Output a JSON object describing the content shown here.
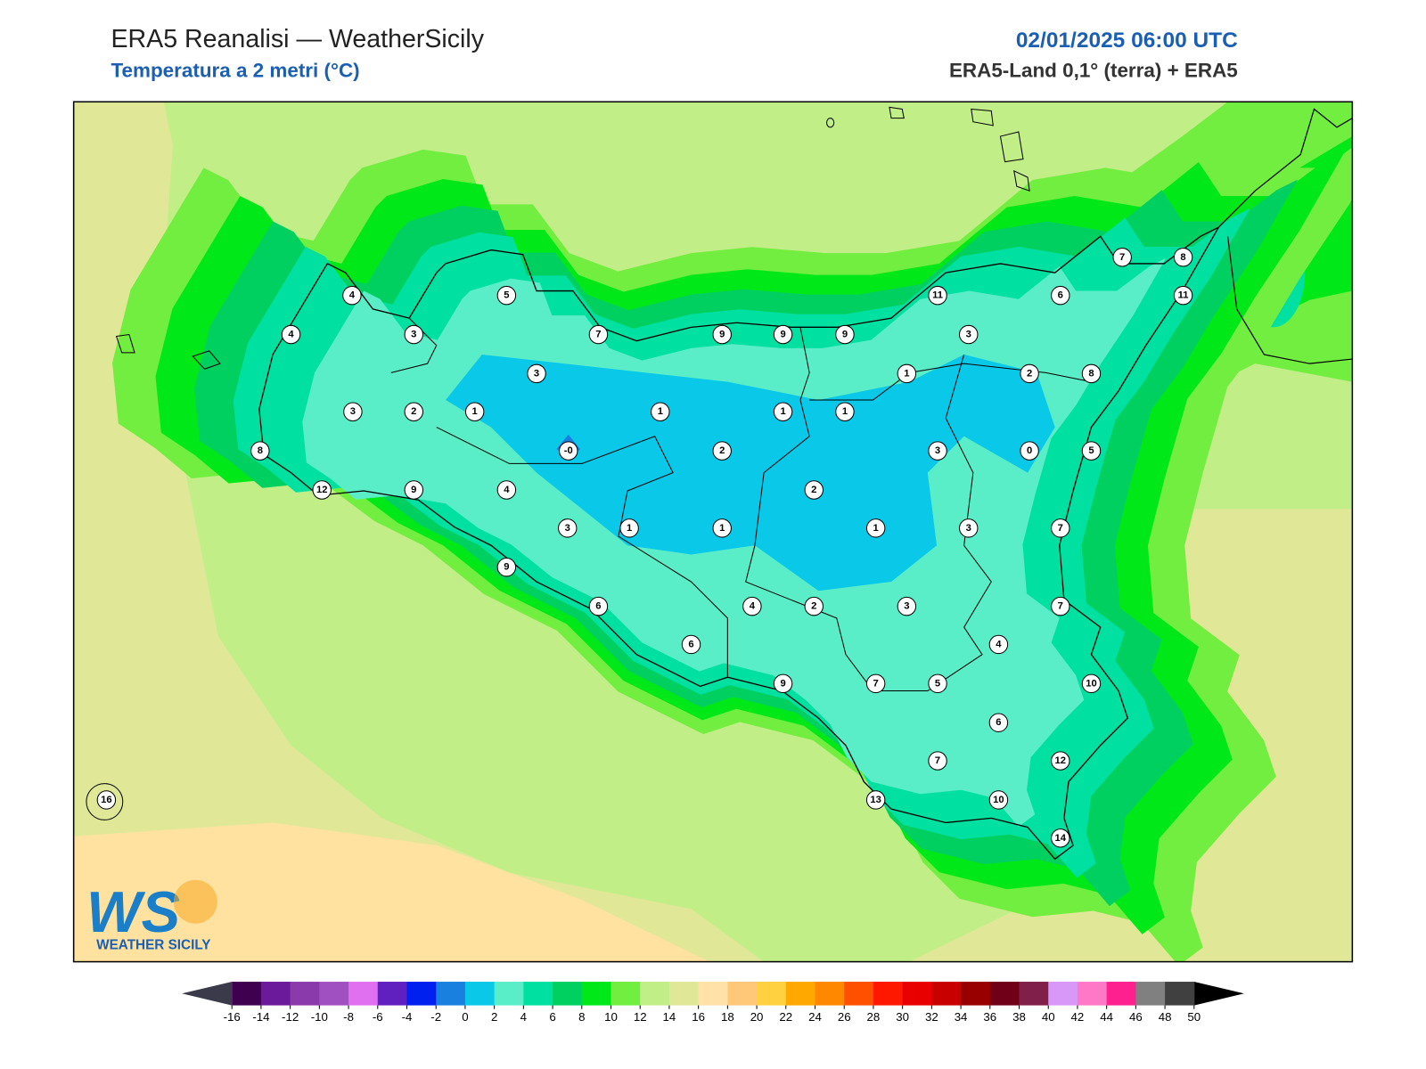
{
  "header": {
    "title": "ERA5 Reanalisi — WeatherSicily",
    "subtitle": "Temperatura a 2 metri (°C)",
    "datetime": "02/01/2025 06:00 UTC",
    "source": "ERA5-Land 0,1° (terra) + ERA5"
  },
  "map": {
    "station_labels": [
      "4",
      "5",
      "4",
      "3",
      "7",
      "9",
      "9",
      "9",
      "11",
      "6",
      "7",
      "8",
      "11",
      "3",
      "3",
      "1",
      "2",
      "8",
      "3",
      "2",
      "1",
      "1",
      "1",
      "1",
      "8",
      "-0",
      "2",
      "3",
      "0",
      "5",
      "12",
      "9",
      "4",
      "2",
      "3",
      "1",
      "1",
      "1",
      "3",
      "7",
      "9",
      "6",
      "4",
      "2",
      "3",
      "7",
      "4",
      "6",
      "9",
      "7",
      "5",
      "10",
      "6",
      "7",
      "12",
      "13",
      "10",
      "14",
      "16"
    ]
  },
  "logo": {
    "mark": "WS",
    "text": "WEATHER SICILY"
  },
  "colorbar": {
    "ticks": [
      -16,
      -14,
      -12,
      -10,
      -8,
      -6,
      -4,
      -2,
      0,
      2,
      4,
      6,
      8,
      10,
      12,
      14,
      16,
      18,
      20,
      22,
      24,
      26,
      28,
      30,
      32,
      34,
      36,
      38,
      40,
      42,
      44,
      46,
      48,
      50
    ],
    "colors": [
      "#3f0050",
      "#6a1a9a",
      "#8a3aaa",
      "#a050c0",
      "#e070f0",
      "#6020c0",
      "#0020f0",
      "#1a80e0",
      "#0ac8e8",
      "#5aeec8",
      "#00e0a0",
      "#00d060",
      "#00e818",
      "#72ee40",
      "#c2ee88",
      "#e0e898",
      "#ffe2a8",
      "#ffc878",
      "#ffd040",
      "#ffa800",
      "#ff8800",
      "#ff5000",
      "#ff1800",
      "#e80000",
      "#c80000",
      "#980000",
      "#700018",
      "#802048",
      "#d898f8",
      "#ff78c8",
      "#ff2090",
      "#808080",
      "#404040"
    ],
    "under_color": "#3a3a4a",
    "over_color": "#000000"
  }
}
